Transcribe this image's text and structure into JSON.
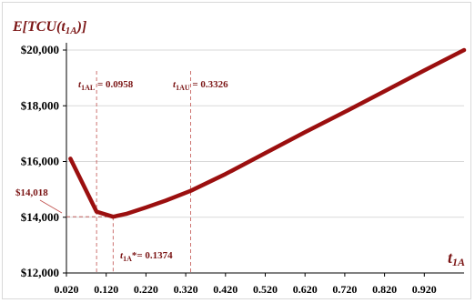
{
  "chart_data": {
    "type": "line",
    "ylabel_main": "E[TCU(t",
    "ylabel_sub": "1A",
    "ylabel_tail": ")]",
    "xlabel_main": "t",
    "xlabel_sub": "1A",
    "x_ticks": [
      "0.020",
      "0.120",
      "0.220",
      "0.320",
      "0.420",
      "0.520",
      "0.620",
      "0.720",
      "0.820",
      "0.920"
    ],
    "x_tick_values": [
      0.02,
      0.12,
      0.22,
      0.32,
      0.42,
      0.52,
      0.62,
      0.72,
      0.82,
      0.92
    ],
    "y_ticks": [
      "$12,000",
      "$14,000",
      "$16,000",
      "$18,000",
      "$20,000"
    ],
    "y_tick_values": [
      12000,
      14000,
      16000,
      18000,
      20000
    ],
    "xlim": [
      0.02,
      1.02
    ],
    "ylim": [
      12000,
      20000
    ],
    "grid": "horizontal",
    "series": [
      {
        "color": "#9b0f0f",
        "x": [
          0.03,
          0.0958,
          0.1374,
          0.17,
          0.22,
          0.27,
          0.3326,
          0.42,
          0.52,
          0.62,
          0.72,
          0.82,
          0.92,
          1.02
        ],
        "y": [
          16100,
          14200,
          14018,
          14120,
          14350,
          14600,
          14950,
          15550,
          16300,
          17050,
          17780,
          18520,
          19270,
          20000
        ]
      }
    ],
    "annotations": {
      "t1al": {
        "main": "t",
        "sub": "1AL",
        "text": " = 0.0958",
        "x": 0.0958
      },
      "t1au": {
        "main": "t",
        "sub": "1AU",
        "text": " = 0.3326",
        "x": 0.3326
      },
      "tstar": {
        "main": "t",
        "sub": "1A",
        "text": "*= 0.1374",
        "x": 0.1374
      },
      "ymin": {
        "text": "$14,018",
        "y": 14018
      }
    }
  }
}
